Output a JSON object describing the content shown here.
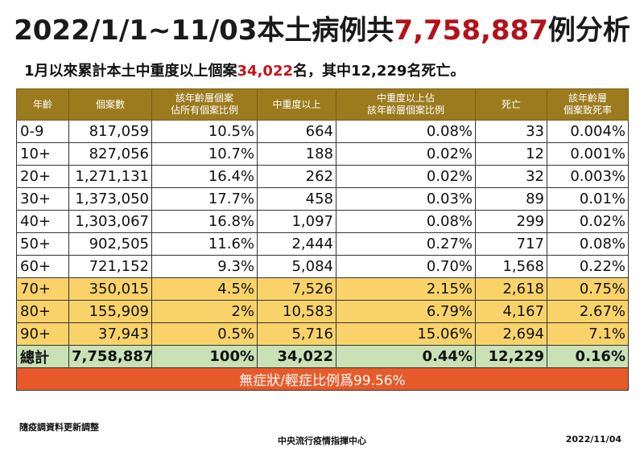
{
  "title": {
    "prefix": "2022/1/1~11/03本土病例共",
    "highlight": "7,758,887",
    "suffix": "例分析"
  },
  "subtitle": {
    "prefix": "1月以來累計本土中重度以上個案",
    "highlight": "34,022",
    "suffix": "名，其中12,229名死亡。"
  },
  "headers": [
    "年齡",
    "個案數",
    "該年齡層個案\n佔所有個案比例",
    "中重度以上",
    "中重度以上佔\n該年齡層個案比例",
    "死亡",
    "該年齡層\n個案致死率"
  ],
  "rows": [
    {
      "age": "0-9",
      "cases": "817,059",
      "share": "10.5%",
      "severe": "664",
      "severe_rate": "0.08%",
      "deaths": "33",
      "cfr": "0.004%"
    },
    {
      "age": "10+",
      "cases": "827,056",
      "share": "10.7%",
      "severe": "188",
      "severe_rate": "0.02%",
      "deaths": "12",
      "cfr": "0.001%"
    },
    {
      "age": "20+",
      "cases": "1,271,131",
      "share": "16.4%",
      "severe": "262",
      "severe_rate": "0.02%",
      "deaths": "32",
      "cfr": "0.003%"
    },
    {
      "age": "30+",
      "cases": "1,373,050",
      "share": "17.7%",
      "severe": "458",
      "severe_rate": "0.03%",
      "deaths": "89",
      "cfr": "0.01%"
    },
    {
      "age": "40+",
      "cases": "1,303,067",
      "share": "16.8%",
      "severe": "1,097",
      "severe_rate": "0.08%",
      "deaths": "299",
      "cfr": "0.02%"
    },
    {
      "age": "50+",
      "cases": "902,505",
      "share": "11.6%",
      "severe": "2,444",
      "severe_rate": "0.27%",
      "deaths": "717",
      "cfr": "0.08%"
    },
    {
      "age": "60+",
      "cases": "721,152",
      "share": "9.3%",
      "severe": "5,084",
      "severe_rate": "0.70%",
      "deaths": "1,568",
      "cfr": "0.22%"
    },
    {
      "age": "70+",
      "cases": "350,015",
      "share": "4.5%",
      "severe": "7,526",
      "severe_rate": "2.15%",
      "deaths": "2,618",
      "cfr": "0.75%",
      "highlight": true
    },
    {
      "age": "80+",
      "cases": "155,909",
      "share": "2%",
      "severe": "10,583",
      "severe_rate": "6.79%",
      "deaths": "4,167",
      "cfr": "2.67%",
      "highlight": true
    },
    {
      "age": "90+",
      "cases": "37,943",
      "share": "0.5%",
      "severe": "5,716",
      "severe_rate": "15.06%",
      "deaths": "2,694",
      "cfr": "7.1%",
      "highlight": true
    }
  ],
  "total": {
    "age": "總計",
    "cases": "7,758,887",
    "share": "100%",
    "severe": "34,022",
    "severe_rate": "0.44%",
    "deaths": "12,229",
    "cfr": "0.16%"
  },
  "banner": "無症狀/輕症比例爲99.56%",
  "note": "隨疫調資料更新調整",
  "footer_center": "中央流行疫情指揮中心",
  "footer_date": "2022/11/04",
  "colors": {
    "header_bg": "#9b7b1e",
    "highlight_row": "#f9d36a",
    "total_row": "#c9e1b4",
    "banner_bg": "#e85a2a",
    "accent_red": "#b3121b"
  }
}
